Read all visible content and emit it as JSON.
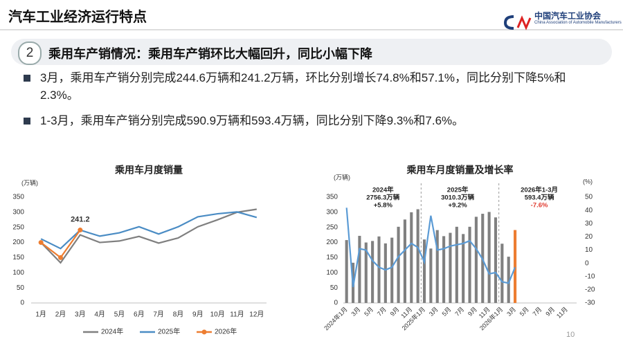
{
  "header": {
    "title": "汽车工业经济运行特点",
    "logo_cn": "中国汽车工业协会",
    "logo_en": "China Association of Automobile Manufacturers"
  },
  "section": {
    "number": "2",
    "heading": "乘用车产销情况：乘用车产销环比大幅回升，同比小幅下降"
  },
  "bullets": [
    "3月，乘用车产销分别完成244.6万辆和241.2万辆，环比分别增长74.8%和57.1%，同比分别下降5%和2.3%。",
    "1-3月，乘用车产销分别完成590.9万辆和593.4万辆，同比分别下降9.3%和7.6%。"
  ],
  "page_number": "10",
  "chart_data": [
    {
      "type": "line",
      "title": "乘用车月度销量",
      "y_label": "(万辆)",
      "categories": [
        "1月",
        "2月",
        "3月",
        "4月",
        "5月",
        "6月",
        "7月",
        "8月",
        "9月",
        "10月",
        "11月",
        "12月"
      ],
      "series": [
        {
          "name": "2024年",
          "color": "#7f7f7f",
          "values": [
            200,
            133,
            225,
            200,
            205,
            220,
            198,
            215,
            252,
            275,
            300,
            310
          ]
        },
        {
          "name": "2025年",
          "color": "#4a8cc4",
          "values": [
            212,
            180,
            241,
            221,
            232,
            252,
            228,
            252,
            285,
            295,
            301,
            283
          ]
        },
        {
          "name": "2026年",
          "color": "#ed7d31",
          "marker": true,
          "label_last": true,
          "values": [
            200,
            150,
            241.2,
            null,
            null,
            null,
            null,
            null,
            null,
            null,
            null,
            null
          ]
        }
      ],
      "ylim": [
        0,
        350
      ],
      "yticks": [
        0,
        50,
        100,
        150,
        200,
        250,
        300,
        350
      ],
      "grid": false,
      "legend": "bottom"
    },
    {
      "type": "bar_line",
      "title": "乘用车月度销量及增长率",
      "y_label": "(万辆)",
      "y2_label": "(%)",
      "categories": [
        "2024年1月",
        null,
        "3月",
        null,
        "5月",
        null,
        "7月",
        null,
        "9月",
        null,
        "11月",
        null,
        "2025年1月",
        null,
        "3月",
        null,
        "5月",
        null,
        "7月",
        null,
        "9月",
        null,
        "11月",
        null,
        "2026年1月",
        null,
        "3月",
        null,
        "5月",
        null,
        "7月",
        null,
        "9月",
        null,
        "11月",
        null
      ],
      "series": [
        {
          "type": "bar",
          "color": "#808080",
          "highlight": {
            "index": 26,
            "color": "#ed7d31"
          },
          "values": [
            208,
            133,
            222,
            200,
            205,
            220,
            197,
            216,
            252,
            276,
            300,
            310,
            210,
            180,
            241,
            221,
            232,
            252,
            228,
            252,
            285,
            295,
            301,
            283,
            196,
            153,
            241.2,
            null,
            null,
            null,
            null,
            null,
            null,
            null,
            null,
            null
          ]
        },
        {
          "type": "line",
          "axis": "y2",
          "color": "#5b9bd5",
          "values": [
            42,
            -18,
            11,
            10,
            2,
            -3,
            -5,
            -3,
            5,
            10,
            15,
            12,
            1,
            36,
            10,
            11,
            13,
            14,
            15,
            17,
            11,
            3,
            -8,
            -7,
            -14,
            -15,
            -3,
            null,
            null,
            null,
            null,
            null,
            null,
            null,
            null,
            null
          ]
        }
      ],
      "ylim": [
        0,
        350
      ],
      "yticks": [
        0,
        50,
        100,
        150,
        200,
        250,
        300,
        350
      ],
      "y2lim": [
        -30,
        50
      ],
      "y2ticks": [
        -30,
        -20,
        -10,
        0,
        10,
        20,
        30,
        40,
        50
      ],
      "grid": false,
      "annotations": [
        {
          "lines": [
            "2024年",
            "2756.3万辆",
            "+5.8%"
          ]
        },
        {
          "lines": [
            "2025年",
            "3010.3万辆",
            "+9.2%"
          ]
        },
        {
          "lines": [
            "2026年1-3月",
            "593.4万辆",
            "-7.6%"
          ],
          "last_line_color": "#e03c31"
        }
      ]
    }
  ]
}
